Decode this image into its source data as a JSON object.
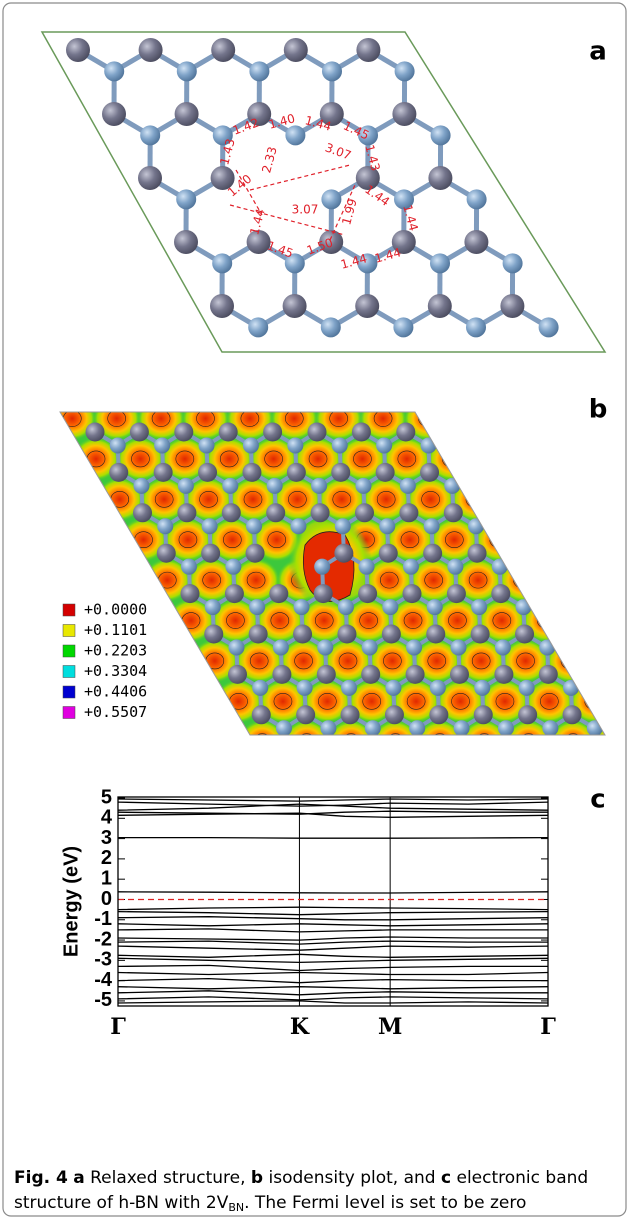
{
  "panel_a": {
    "label": "a",
    "bond_labels": [
      "1.43",
      "1.42",
      "1.40",
      "1.44",
      "1.45",
      "1.43",
      "1.40",
      "1.44",
      "1.45",
      "1.50",
      "1.44",
      "1.44",
      "1.44",
      "1.44"
    ],
    "distances": [
      "2.33",
      "3.07",
      "3.07",
      "1.99"
    ]
  },
  "panel_b": {
    "label": "b",
    "legend": [
      {
        "label": "+0.0000",
        "color": "#d40000"
      },
      {
        "label": "+0.1101",
        "color": "#e8e800"
      },
      {
        "label": "+0.2203",
        "color": "#00d800"
      },
      {
        "label": "+0.3304",
        "color": "#00dede"
      },
      {
        "label": "+0.4406",
        "color": "#0000d0"
      },
      {
        "label": "+0.5507",
        "color": "#e000e0"
      }
    ]
  },
  "panel_c": {
    "label": "c"
  },
  "chart_data": {
    "type": "line",
    "ylabel": "Energy (eV)",
    "color": "#000000",
    "x": [
      0,
      0.5,
      1,
      1.25,
      1.5,
      1.93,
      2.37
    ],
    "xlim": [
      0,
      2.37
    ],
    "xticks": [
      {
        "value": 0,
        "label": "Γ"
      },
      {
        "value": 1,
        "label": "K"
      },
      {
        "value": 1.5,
        "label": "M"
      },
      {
        "value": 2.37,
        "label": "Γ"
      }
    ],
    "ylim": [
      -5.25,
      5.05
    ],
    "yticks": [
      -5,
      -4,
      -3,
      -2,
      -1,
      0,
      1,
      2,
      3,
      4,
      5
    ],
    "fermi_level": 0,
    "fermi_color": "#e02020",
    "series": [
      {
        "values": [
          4.95,
          4.9,
          4.85,
          4.9,
          4.95,
          4.9,
          4.95
        ]
      },
      {
        "values": [
          4.8,
          4.7,
          4.6,
          4.65,
          4.75,
          4.7,
          4.8
        ]
      },
      {
        "values": [
          4.4,
          4.5,
          4.7,
          4.6,
          4.5,
          4.45,
          4.4
        ]
      },
      {
        "values": [
          4.3,
          4.25,
          4.2,
          4.3,
          4.35,
          4.3,
          4.3
        ]
      },
      {
        "values": [
          4.15,
          4.2,
          4.25,
          4.1,
          4.05,
          4.1,
          4.15
        ]
      },
      {
        "values": [
          3.05,
          3.05,
          3.02,
          3.02,
          3.02,
          3.03,
          3.05
        ]
      },
      {
        "values": [
          0.38,
          0.36,
          0.33,
          0.32,
          0.32,
          0.35,
          0.38
        ]
      },
      {
        "values": [
          -0.5,
          -0.42,
          -0.38,
          -0.4,
          -0.42,
          -0.45,
          -0.5
        ]
      },
      {
        "values": [
          -0.6,
          -0.65,
          -0.75,
          -0.7,
          -0.65,
          -0.62,
          -0.6
        ]
      },
      {
        "values": [
          -0.9,
          -0.85,
          -0.95,
          -1.0,
          -1.0,
          -0.95,
          -0.9
        ]
      },
      {
        "values": [
          -1.2,
          -1.3,
          -1.2,
          -1.25,
          -1.3,
          -1.25,
          -1.2
        ]
      },
      {
        "values": [
          -1.5,
          -1.45,
          -1.6,
          -1.55,
          -1.5,
          -1.5,
          -1.5
        ]
      },
      {
        "values": [
          -1.9,
          -1.95,
          -2.0,
          -1.9,
          -1.85,
          -1.9,
          -1.9
        ]
      },
      {
        "values": [
          -2.1,
          -2.05,
          -2.2,
          -2.1,
          -2.05,
          -2.1,
          -2.1
        ]
      },
      {
        "values": [
          -2.3,
          -2.4,
          -2.5,
          -2.4,
          -2.3,
          -2.35,
          -2.3
        ]
      },
      {
        "values": [
          -2.75,
          -2.85,
          -2.7,
          -2.8,
          -2.85,
          -2.8,
          -2.75
        ]
      },
      {
        "values": [
          -2.9,
          -3.0,
          -3.1,
          -3.05,
          -3.0,
          -2.95,
          -2.9
        ]
      },
      {
        "values": [
          -3.3,
          -3.25,
          -3.5,
          -3.4,
          -3.35,
          -3.3,
          -3.3
        ]
      },
      {
        "values": [
          -3.6,
          -3.7,
          -3.6,
          -3.65,
          -3.7,
          -3.7,
          -3.6
        ]
      },
      {
        "values": [
          -4.0,
          -3.9,
          -4.1,
          -4.0,
          -3.95,
          -4.0,
          -4.0
        ]
      },
      {
        "values": [
          -4.3,
          -4.4,
          -4.3,
          -4.35,
          -4.4,
          -4.35,
          -4.3
        ]
      },
      {
        "values": [
          -4.6,
          -4.5,
          -4.7,
          -4.6,
          -4.55,
          -4.6,
          -4.6
        ]
      },
      {
        "values": [
          -4.9,
          -4.8,
          -4.95,
          -4.85,
          -4.8,
          -4.85,
          -4.9
        ]
      },
      {
        "values": [
          -5.1,
          -5.05,
          -5.0,
          -5.1,
          -5.1,
          -5.05,
          -5.1
        ]
      }
    ]
  },
  "caption": {
    "fig": "Fig. 4",
    "a": "a",
    "text_a": "Relaxed structure,",
    "b": "b",
    "text_b": "isodensity plot, and",
    "c": "c",
    "text_c1": "electronic band",
    "text_c2": "structure of h-BN with 2V",
    "subscript": "BN",
    "text_end": ". The Fermi level is set to be zero"
  }
}
